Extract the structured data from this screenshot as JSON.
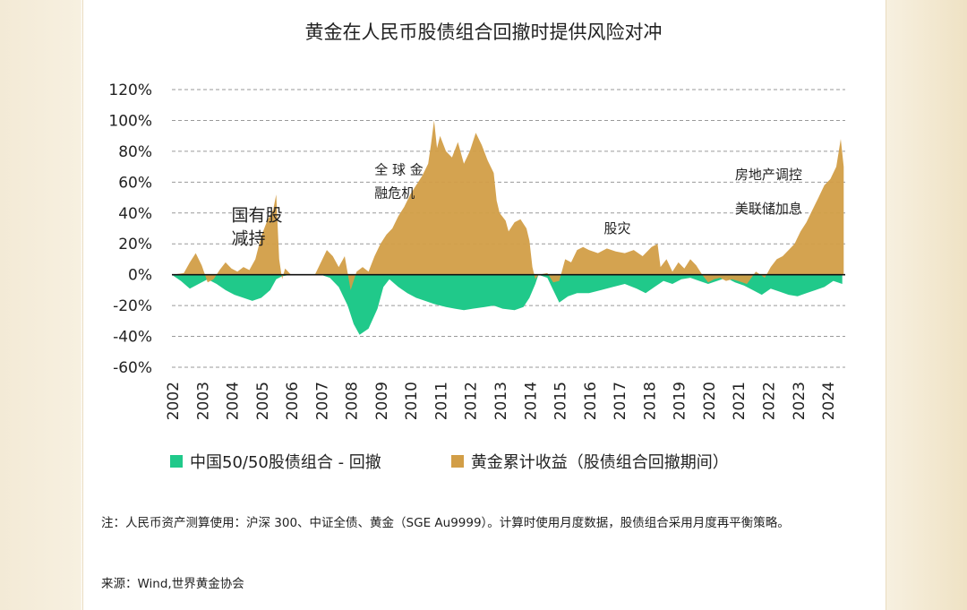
{
  "chart_data": {
    "type": "area",
    "title": "黄金在人民币股债组合回撤时提供风险对冲",
    "ylim": [
      -60,
      120
    ],
    "y_ticks": [
      "120%",
      "100%",
      "80%",
      "60%",
      "40%",
      "20%",
      "0%",
      "-20%",
      "-40%",
      "-60%"
    ],
    "y_tick_values": [
      120,
      100,
      80,
      60,
      40,
      20,
      0,
      -20,
      -40,
      -60
    ],
    "x_ticks": [
      "2002",
      "2003",
      "2004",
      "2005",
      "2006",
      "2007",
      "2008",
      "2009",
      "2010",
      "2011",
      "2012",
      "2013",
      "2014",
      "2015",
      "2016",
      "2017",
      "2018",
      "2019",
      "2020",
      "2021",
      "2022",
      "2023",
      "2024"
    ],
    "series": [
      {
        "name": "中国50/50股债组合 - 回撤",
        "color": "#20c98a",
        "points": [
          [
            2002.0,
            0
          ],
          [
            2002.3,
            -4
          ],
          [
            2002.6,
            -9
          ],
          [
            2002.9,
            -6
          ],
          [
            2003.2,
            -3
          ],
          [
            2003.5,
            -6
          ],
          [
            2003.8,
            -10
          ],
          [
            2004.1,
            -13
          ],
          [
            2004.4,
            -15
          ],
          [
            2004.7,
            -17
          ],
          [
            2005.0,
            -15
          ],
          [
            2005.3,
            -10
          ],
          [
            2005.5,
            -3
          ],
          [
            2005.7,
            -1
          ],
          [
            2006.0,
            0
          ],
          [
            2006.5,
            0
          ],
          [
            2007.0,
            0
          ],
          [
            2007.3,
            -2
          ],
          [
            2007.6,
            -8
          ],
          [
            2007.9,
            -20
          ],
          [
            2008.1,
            -32
          ],
          [
            2008.3,
            -39
          ],
          [
            2008.6,
            -35
          ],
          [
            2008.9,
            -22
          ],
          [
            2009.1,
            -8
          ],
          [
            2009.3,
            -3
          ],
          [
            2009.6,
            -8
          ],
          [
            2009.9,
            -12
          ],
          [
            2010.2,
            -15
          ],
          [
            2010.5,
            -17
          ],
          [
            2010.8,
            -19
          ],
          [
            2011.2,
            -21
          ],
          [
            2011.5,
            -22
          ],
          [
            2011.8,
            -23
          ],
          [
            2012.1,
            -22
          ],
          [
            2012.5,
            -21
          ],
          [
            2012.8,
            -20
          ],
          [
            2013.1,
            -22
          ],
          [
            2013.5,
            -23
          ],
          [
            2013.8,
            -21
          ],
          [
            2014.0,
            -15
          ],
          [
            2014.2,
            -6
          ],
          [
            2014.3,
            0
          ],
          [
            2014.6,
            -2
          ],
          [
            2014.8,
            -10
          ],
          [
            2015.0,
            -18
          ],
          [
            2015.3,
            -14
          ],
          [
            2015.6,
            -12
          ],
          [
            2016.0,
            -12
          ],
          [
            2016.4,
            -10
          ],
          [
            2016.8,
            -8
          ],
          [
            2017.2,
            -6
          ],
          [
            2017.6,
            -9
          ],
          [
            2017.9,
            -12
          ],
          [
            2018.2,
            -8
          ],
          [
            2018.5,
            -4
          ],
          [
            2018.8,
            -6
          ],
          [
            2019.1,
            -3
          ],
          [
            2019.4,
            -2
          ],
          [
            2019.7,
            -4
          ],
          [
            2020.0,
            -6
          ],
          [
            2020.3,
            -4
          ],
          [
            2020.6,
            -2
          ],
          [
            2020.9,
            -5
          ],
          [
            2021.2,
            -7
          ],
          [
            2021.5,
            -10
          ],
          [
            2021.8,
            -13
          ],
          [
            2022.1,
            -9
          ],
          [
            2022.4,
            -11
          ],
          [
            2022.7,
            -13
          ],
          [
            2023.0,
            -14
          ],
          [
            2023.3,
            -12
          ],
          [
            2023.6,
            -10
          ],
          [
            2023.9,
            -8
          ],
          [
            2024.2,
            -4
          ],
          [
            2024.5,
            -6
          ]
        ]
      },
      {
        "name": "黄金累计收益（股债组合回撤期间）",
        "color": "#d29e47",
        "points": [
          [
            2002.0,
            0
          ],
          [
            2002.4,
            1
          ],
          [
            2002.6,
            8
          ],
          [
            2002.8,
            14
          ],
          [
            2003.0,
            6
          ],
          [
            2003.2,
            -5
          ],
          [
            2003.4,
            -3
          ],
          [
            2003.6,
            3
          ],
          [
            2003.8,
            8
          ],
          [
            2004.0,
            4
          ],
          [
            2004.2,
            2
          ],
          [
            2004.4,
            5
          ],
          [
            2004.6,
            3
          ],
          [
            2004.8,
            10
          ],
          [
            2005.0,
            25
          ],
          [
            2005.2,
            35
          ],
          [
            2005.4,
            42
          ],
          [
            2005.5,
            52
          ],
          [
            2005.6,
            10
          ],
          [
            2005.7,
            -3
          ],
          [
            2005.8,
            4
          ],
          [
            2006.0,
            0
          ],
          [
            2006.8,
            0
          ],
          [
            2007.0,
            8
          ],
          [
            2007.2,
            16
          ],
          [
            2007.4,
            12
          ],
          [
            2007.6,
            5
          ],
          [
            2007.8,
            12
          ],
          [
            2008.0,
            -10
          ],
          [
            2008.2,
            2
          ],
          [
            2008.4,
            5
          ],
          [
            2008.6,
            2
          ],
          [
            2008.8,
            12
          ],
          [
            2009.0,
            20
          ],
          [
            2009.2,
            26
          ],
          [
            2009.4,
            30
          ],
          [
            2009.6,
            38
          ],
          [
            2009.8,
            44
          ],
          [
            2010.0,
            52
          ],
          [
            2010.2,
            58
          ],
          [
            2010.4,
            64
          ],
          [
            2010.6,
            72
          ],
          [
            2010.7,
            85
          ],
          [
            2010.8,
            100
          ],
          [
            2010.9,
            82
          ],
          [
            2011.0,
            90
          ],
          [
            2011.2,
            80
          ],
          [
            2011.4,
            76
          ],
          [
            2011.6,
            86
          ],
          [
            2011.8,
            72
          ],
          [
            2012.0,
            80
          ],
          [
            2012.2,
            92
          ],
          [
            2012.4,
            84
          ],
          [
            2012.6,
            74
          ],
          [
            2012.8,
            66
          ],
          [
            2012.9,
            48
          ],
          [
            2013.0,
            40
          ],
          [
            2013.2,
            35
          ],
          [
            2013.3,
            28
          ],
          [
            2013.5,
            34
          ],
          [
            2013.7,
            36
          ],
          [
            2013.9,
            30
          ],
          [
            2014.0,
            22
          ],
          [
            2014.1,
            5
          ],
          [
            2014.2,
            -3
          ],
          [
            2014.3,
            0
          ],
          [
            2014.6,
            1
          ],
          [
            2014.8,
            -5
          ],
          [
            2015.0,
            -4
          ],
          [
            2015.2,
            10
          ],
          [
            2015.4,
            8
          ],
          [
            2015.6,
            16
          ],
          [
            2015.8,
            18
          ],
          [
            2016.0,
            16
          ],
          [
            2016.3,
            14
          ],
          [
            2016.6,
            17
          ],
          [
            2016.9,
            15
          ],
          [
            2017.2,
            14
          ],
          [
            2017.5,
            16
          ],
          [
            2017.8,
            12
          ],
          [
            2018.1,
            18
          ],
          [
            2018.3,
            20
          ],
          [
            2018.4,
            5
          ],
          [
            2018.6,
            10
          ],
          [
            2018.8,
            2
          ],
          [
            2019.0,
            8
          ],
          [
            2019.2,
            4
          ],
          [
            2019.4,
            10
          ],
          [
            2019.6,
            6
          ],
          [
            2019.8,
            0
          ],
          [
            2020.0,
            -5
          ],
          [
            2020.2,
            -3
          ],
          [
            2020.4,
            -2
          ],
          [
            2020.6,
            -4
          ],
          [
            2020.8,
            -3
          ],
          [
            2021.0,
            -4
          ],
          [
            2021.3,
            -6
          ],
          [
            2021.6,
            2
          ],
          [
            2021.9,
            -2
          ],
          [
            2022.1,
            5
          ],
          [
            2022.3,
            10
          ],
          [
            2022.5,
            12
          ],
          [
            2022.7,
            16
          ],
          [
            2022.9,
            20
          ],
          [
            2023.1,
            28
          ],
          [
            2023.3,
            34
          ],
          [
            2023.5,
            42
          ],
          [
            2023.7,
            50
          ],
          [
            2023.9,
            58
          ],
          [
            2024.1,
            62
          ],
          [
            2024.3,
            70
          ],
          [
            2024.45,
            88
          ],
          [
            2024.55,
            70
          ]
        ]
      }
    ],
    "annotations": [
      {
        "lines": [
          "国有股",
          "减持"
        ],
        "at": [
          2004.0,
          35
        ]
      },
      {
        "lines": [
          "全 球 金",
          "融危机"
        ],
        "at": [
          2008.8,
          65
        ]
      },
      {
        "lines": [
          "股灾"
        ],
        "at": [
          2016.5,
          27
        ]
      },
      {
        "lines": [
          "房地产调控"
        ],
        "at": [
          2020.9,
          62
        ]
      },
      {
        "lines": [
          "美联储加息"
        ],
        "at": [
          2020.9,
          40
        ]
      }
    ]
  },
  "legend": {
    "drawdown_label": "中国50/50股债组合 - 回撤",
    "gold_label": "黄金累计收益（股债组合回撤期间）"
  },
  "footer": {
    "note": "注：人民币资产测算使用：沪深 300、中证全债、黄金（SGE Au9999）。计算时使用月度数据，股债组合采用月度再平衡策略。",
    "source": "来源：Wind,世界黄金协会"
  },
  "colors": {
    "drawdown": "#20c98a",
    "gold": "#d29e47"
  }
}
